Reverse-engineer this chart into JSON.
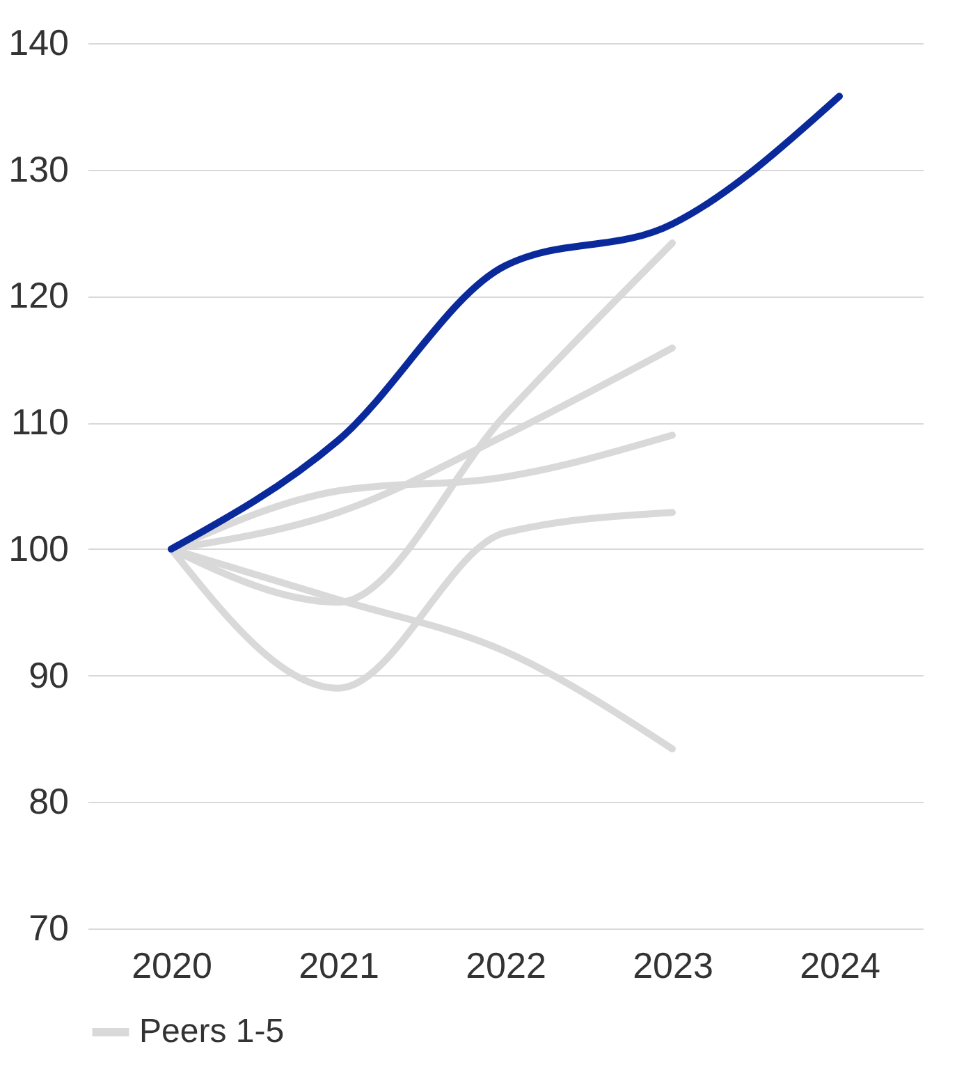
{
  "chart_data": {
    "type": "line",
    "categories": [
      "2020",
      "2021",
      "2022",
      "2023",
      "2024"
    ],
    "series": [
      {
        "color": "#0a2a9c",
        "values": [
          100,
          108.6,
          122.4,
          125.7,
          135.8
        ]
      },
      {
        "name": "Peers 1-5",
        "color": "#d9d9d9",
        "values": [
          100,
          95.8,
          110.6,
          124.2,
          null
        ]
      },
      {
        "color": "#d9d9d9",
        "values": [
          100,
          102.9,
          109,
          115.9,
          null
        ]
      },
      {
        "color": "#d9d9d9",
        "values": [
          100,
          104.6,
          105.7,
          109,
          null
        ]
      },
      {
        "color": "#d9d9d9",
        "values": [
          100,
          89,
          101.3,
          102.9,
          null
        ]
      },
      {
        "color": "#d9d9d9",
        "values": [
          100,
          96,
          91.9,
          84.2,
          null
        ]
      }
    ],
    "ylim": [
      70,
      140
    ],
    "yticks": [
      70,
      80,
      90,
      100,
      110,
      120,
      130,
      140
    ],
    "grid": "y",
    "legend": "bottom",
    "marker": "none",
    "line_style": "solid"
  }
}
